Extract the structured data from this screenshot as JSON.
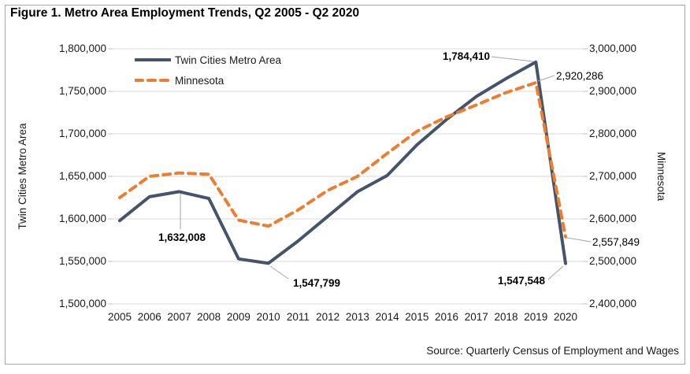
{
  "figure": {
    "title": "Figure 1. Metro Area Employment Trends, Q2 2005 - Q2 2020",
    "source": "Source: Quarterly Census of Employment and Wages"
  },
  "chart_data": {
    "type": "line",
    "title": "Figure 1. Metro Area Employment Trends, Q2 2005 - Q2 2020",
    "x": [
      2005,
      2006,
      2007,
      2008,
      2009,
      2010,
      2011,
      2012,
      2013,
      2014,
      2015,
      2016,
      2017,
      2018,
      2019,
      2020
    ],
    "x_tick_labels": [
      "2005",
      "2006",
      "2007",
      "2008",
      "2009",
      "2010",
      "2011",
      "2012",
      "2013",
      "2014",
      "2015",
      "2016",
      "2017",
      "2018",
      "2019",
      "2020"
    ],
    "series": [
      {
        "name": "Twin Cities Metro Area",
        "axis": "left",
        "color": "#44546A",
        "line_style": "solid",
        "values": [
          1598000,
          1626000,
          1632008,
          1624000,
          1553000,
          1547799,
          1574000,
          1603000,
          1632000,
          1651000,
          1687000,
          1717000,
          1744000,
          1765000,
          1784410,
          1547548
        ]
      },
      {
        "name": "Minnesota",
        "axis": "right",
        "color": "#ED7D31",
        "line_style": "dashed",
        "values": [
          2650000,
          2700000,
          2708000,
          2705000,
          2597000,
          2583000,
          2621000,
          2667000,
          2700000,
          2754000,
          2806000,
          2840000,
          2868000,
          2897000,
          2920286,
          2557849
        ]
      }
    ],
    "left_axis": {
      "title": "Twin Cities Metro Area",
      "min": 1500000,
      "max": 1800000,
      "step": 50000,
      "tick_labels": [
        "1,800,000",
        "1,750,000",
        "1,700,000",
        "1,650,000",
        "1,600,000",
        "1,550,000",
        "1,500,000"
      ]
    },
    "right_axis": {
      "title": "Minnesota",
      "min": 2400000,
      "max": 3000000,
      "step": 100000,
      "tick_labels": [
        "3,000,000",
        "2,900,000",
        "2,800,000",
        "2,700,000",
        "2,600,000",
        "2,500,000",
        "2,400,000"
      ]
    },
    "legend": {
      "position": "top-left-inside",
      "entries": [
        "Twin Cities Metro Area",
        "Minnesota"
      ]
    },
    "grid": true,
    "annotations": [
      {
        "id": "tc-2007",
        "series": "Twin Cities Metro Area",
        "year": 2007,
        "value": 1632008,
        "label": "1,632,008"
      },
      {
        "id": "tc-2010",
        "series": "Twin Cities Metro Area",
        "year": 2010,
        "value": 1547799,
        "label": "1,547,799"
      },
      {
        "id": "tc-2019",
        "series": "Twin Cities Metro Area",
        "year": 2019,
        "value": 1784410,
        "label": "1,784,410"
      },
      {
        "id": "tc-2020",
        "series": "Twin Cities Metro Area",
        "year": 2020,
        "value": 1547548,
        "label": "1,547,548"
      },
      {
        "id": "mn-2019",
        "series": "Minnesota",
        "year": 2019,
        "value": 2920286,
        "label": "2,920,286"
      },
      {
        "id": "mn-2020",
        "series": "Minnesota",
        "year": 2020,
        "value": 2557849,
        "label": "2,557,849"
      }
    ],
    "colors": {
      "gridline": "#D9D9D9",
      "tick": "#BFBFBF",
      "frame": "#A6A6A6",
      "leader": "#A6A6A6",
      "text": "#1a1a1a"
    }
  }
}
